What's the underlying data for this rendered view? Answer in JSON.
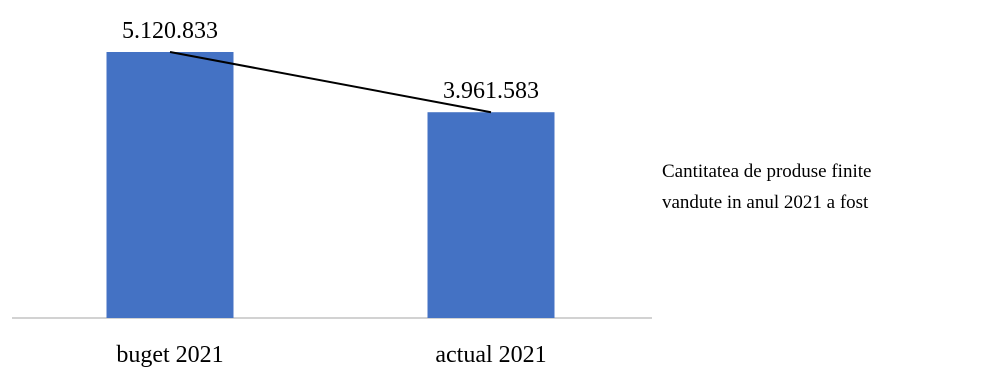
{
  "chart_data": {
    "type": "bar",
    "categories": [
      "buget 2021",
      "actual 2021"
    ],
    "values": [
      5120833,
      3961583
    ],
    "value_labels": [
      "5.120.833",
      "3.961.583"
    ],
    "title": "",
    "xlabel": "",
    "ylabel": "",
    "ylim": [
      0,
      5120833
    ],
    "grid": false,
    "legend": "none",
    "colors": {
      "bar": "#4472C4",
      "axis": "#A6A6A6",
      "connector": "#000000"
    },
    "annotations": {
      "connector_line": true
    }
  },
  "side_text": {
    "line1": "Cantitatea de produse finite",
    "line2": "vandute in anul 2021 a fost"
  }
}
